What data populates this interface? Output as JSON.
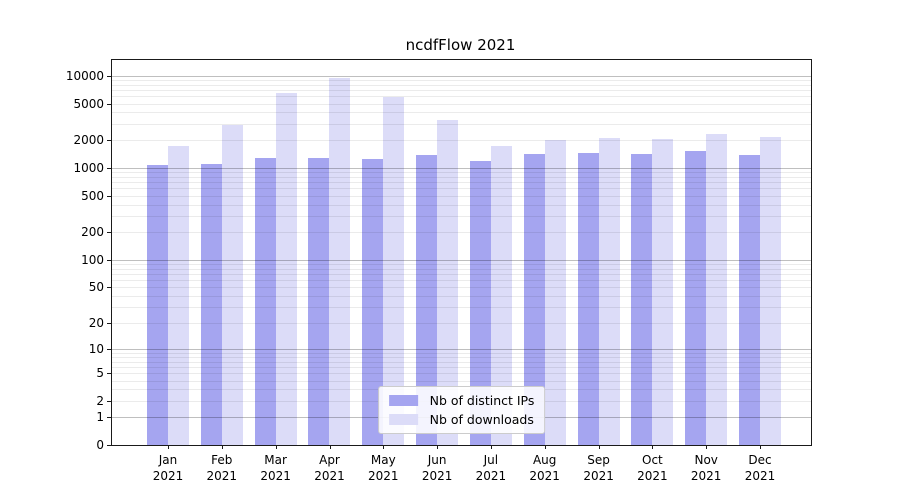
{
  "title": "ncdfFlow 2021",
  "chart_data": {
    "type": "bar",
    "title": "ncdfFlow 2021",
    "yscale": "log1p",
    "grid": "both",
    "legend_position": "lower center",
    "ylim": [
      0,
      14900
    ],
    "yticks": [
      0,
      1,
      2,
      5,
      10,
      20,
      50,
      100,
      200,
      500,
      1000,
      2000,
      5000,
      10000
    ],
    "categories": [
      "Jan",
      "Feb",
      "Mar",
      "Apr",
      "May",
      "Jun",
      "Jul",
      "Aug",
      "Sep",
      "Oct",
      "Nov",
      "Dec"
    ],
    "year_label": "2021",
    "series": [
      {
        "name": "Nb of distinct IPs",
        "color": "#a5a5f0",
        "values": [
          1080,
          1105,
          1295,
          1285,
          1260,
          1375,
          1200,
          1430,
          1465,
          1420,
          1540,
          1390
        ]
      },
      {
        "name": "Nb of downloads",
        "color": "#dcdcf8",
        "values": [
          1720,
          2930,
          6450,
          9400,
          5950,
          3350,
          1750,
          2020,
          2120,
          2070,
          2360,
          2190
        ]
      }
    ]
  },
  "colors": {
    "major_grid": "#c0c0c0",
    "minor_grid": "#ebebeb",
    "axis": "#1a1a1a",
    "background": "#ffffff"
  }
}
